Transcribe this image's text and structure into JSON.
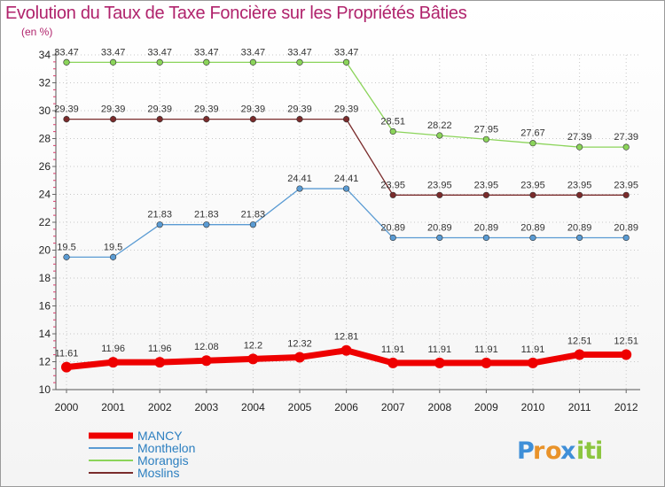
{
  "chart_data": {
    "type": "line",
    "title": "Evolution du Taux de Taxe Foncière sur les Propriétés Bâties",
    "ylabel": "(en %)",
    "xlabel": "",
    "categories": [
      "2000",
      "2001",
      "2002",
      "2003",
      "2004",
      "2005",
      "2006",
      "2007",
      "2008",
      "2009",
      "2010",
      "2011",
      "2012"
    ],
    "ylim": [
      10,
      34
    ],
    "yticks": [
      10,
      12,
      14,
      16,
      18,
      20,
      22,
      24,
      26,
      28,
      30,
      32,
      34
    ],
    "grid": true,
    "series": [
      {
        "name": "MANCY",
        "color": "#ee0000",
        "values": [
          11.61,
          11.96,
          11.96,
          12.08,
          12.2,
          12.32,
          12.81,
          11.91,
          11.91,
          11.91,
          11.91,
          12.51,
          12.51
        ],
        "labels": [
          "11.61",
          "11.96",
          "11.96",
          "12.08",
          "12.2",
          "12.32",
          "12.81",
          "11.91",
          "11.91",
          "11.91",
          "11.91",
          "12.51",
          "12.51"
        ]
      },
      {
        "name": "Monthelon",
        "color": "#5a9bd3",
        "values": [
          19.5,
          19.5,
          21.83,
          21.83,
          21.83,
          24.41,
          24.41,
          20.89,
          20.89,
          20.89,
          20.89,
          20.89,
          20.89
        ],
        "labels": [
          "19.5",
          "19.5",
          "21.83",
          "21.83",
          "21.83",
          "24.41",
          "24.41",
          "20.89",
          "20.89",
          "20.89",
          "20.89",
          "20.89",
          "20.89"
        ]
      },
      {
        "name": "Morangis",
        "color": "#8bd45a",
        "values": [
          33.47,
          33.47,
          33.47,
          33.47,
          33.47,
          33.47,
          33.47,
          28.51,
          28.22,
          27.95,
          27.67,
          27.39,
          27.39
        ],
        "labels": [
          "33.47",
          "33.47",
          "33.47",
          "33.47",
          "33.47",
          "33.47",
          "33.47",
          "28.51",
          "28.22",
          "27.95",
          "27.67",
          "27.39",
          "27.39"
        ]
      },
      {
        "name": "Moslins",
        "color": "#7a2b2b",
        "values": [
          29.39,
          29.39,
          29.39,
          29.39,
          29.39,
          29.39,
          29.39,
          23.95,
          23.95,
          23.95,
          23.95,
          23.95,
          23.95
        ],
        "labels": [
          "29.39",
          "29.39",
          "29.39",
          "29.39",
          "29.39",
          "29.39",
          "29.39",
          "23.95",
          "23.95",
          "23.95",
          "23.95",
          "23.95",
          "23.95"
        ]
      }
    ],
    "legend": "bottom-left"
  },
  "brand": {
    "letters": [
      "P",
      "r",
      "o",
      "x",
      "i",
      "t",
      "i"
    ],
    "colors": [
      "#3f8fd8",
      "#e9932a",
      "#e9932a",
      "#3f8fd8",
      "#8cc63f",
      "#8cc63f",
      "#8cc63f"
    ]
  }
}
